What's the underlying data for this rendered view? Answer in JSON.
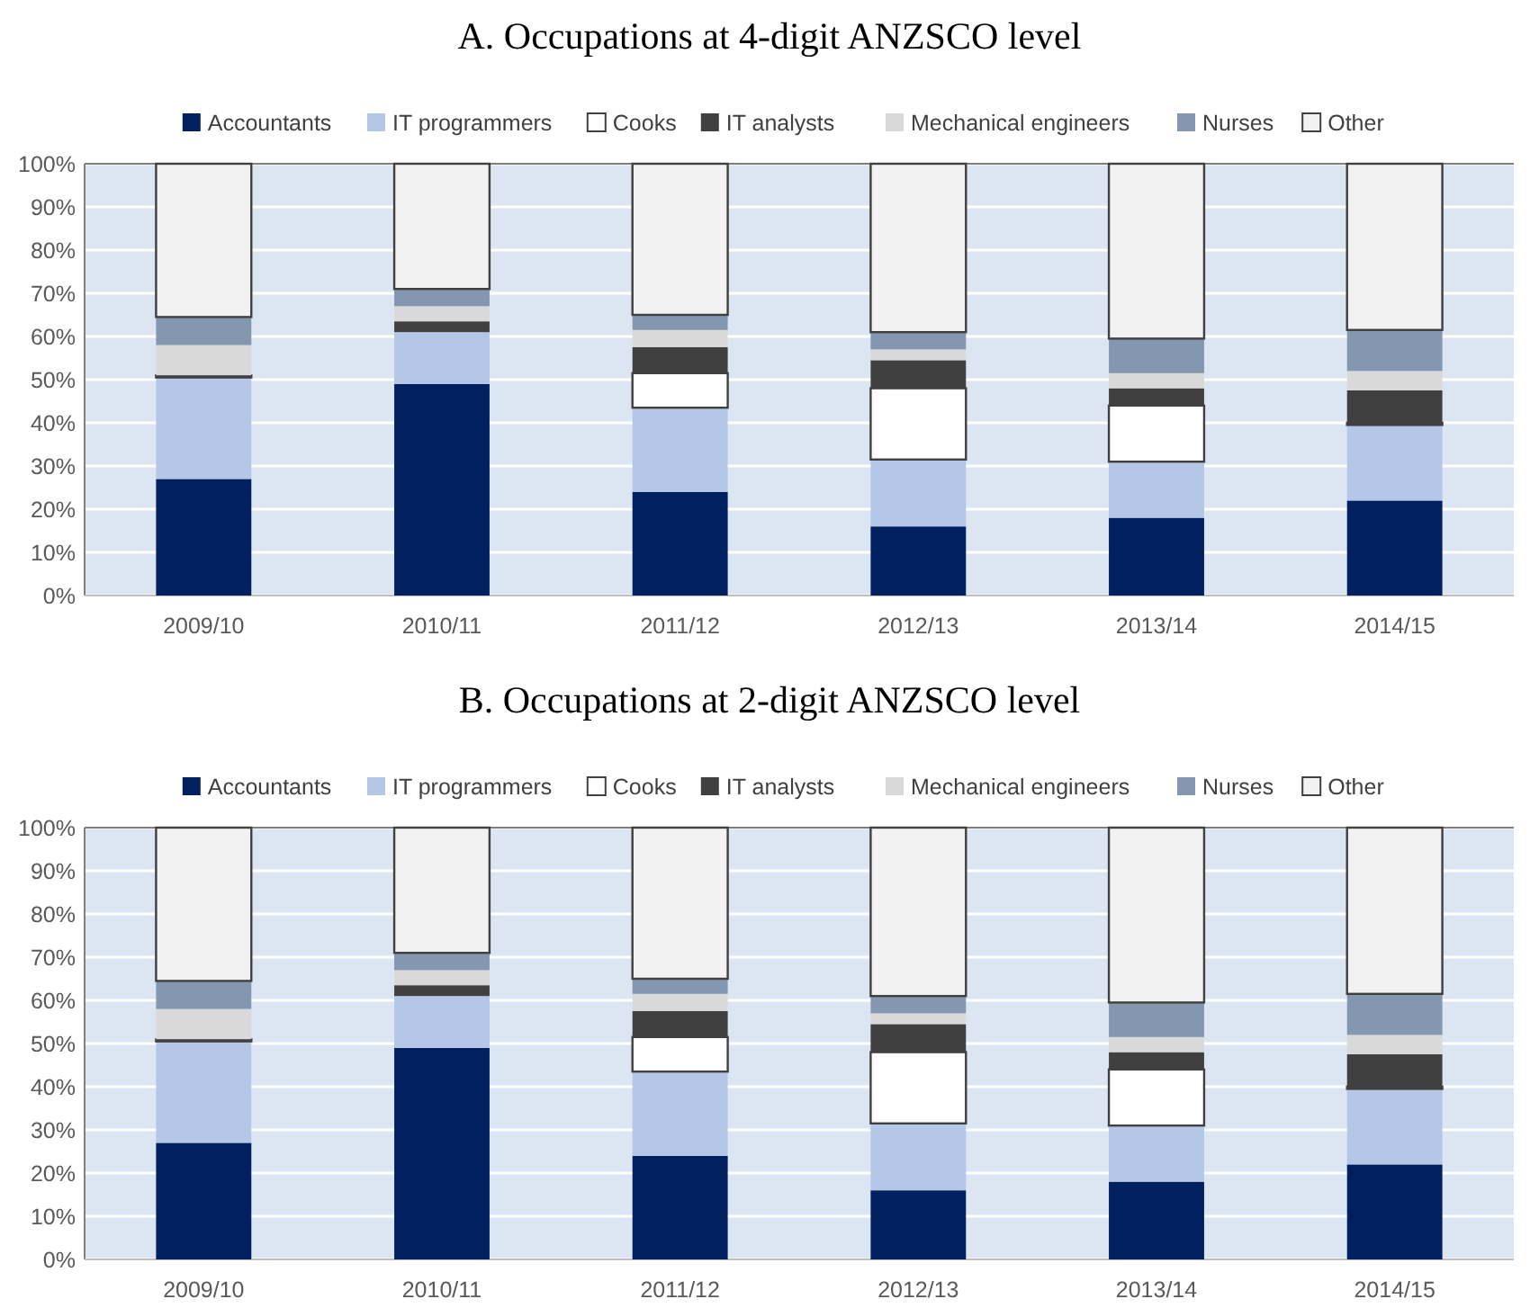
{
  "chart_data": [
    {
      "type": "bar",
      "title": "A. Occupations at 4-digit ANZSCO level",
      "stacked": true,
      "categories": [
        "2009/10",
        "2010/11",
        "2011/12",
        "2012/13",
        "2013/14",
        "2014/15"
      ],
      "ylim": [
        0,
        100
      ],
      "yticks": [
        {
          "value": 0,
          "label": "0%"
        },
        {
          "value": 10,
          "label": "10%"
        },
        {
          "value": 20,
          "label": "20%"
        },
        {
          "value": 30,
          "label": "30%"
        },
        {
          "value": 40,
          "label": "40%"
        },
        {
          "value": 50,
          "label": "50%"
        },
        {
          "value": 60,
          "label": "60%"
        },
        {
          "value": 70,
          "label": "70%"
        },
        {
          "value": 80,
          "label": "80%"
        },
        {
          "value": 90,
          "label": "90%"
        },
        {
          "value": 100,
          "label": "100%"
        }
      ],
      "grid": "y",
      "legend": "top",
      "series": [
        {
          "name": "Accountants",
          "color": "#002060",
          "values": [
            27,
            49,
            24,
            16,
            18,
            22
          ]
        },
        {
          "name": "IT programmers",
          "color": "#b4c7e7",
          "values": [
            23.5,
            12,
            19.5,
            15.5,
            13,
            17.5
          ]
        },
        {
          "name": "Cooks",
          "color": "#ffffff",
          "values": [
            0.5,
            0,
            8,
            16.5,
            13,
            0.5
          ]
        },
        {
          "name": "IT analysts",
          "color": "#404040",
          "values": [
            0,
            2.5,
            6,
            6.5,
            4,
            7.5
          ]
        },
        {
          "name": "Mechanical engineers",
          "color": "#d9d9d9",
          "values": [
            7,
            3.5,
            4,
            2.5,
            3.5,
            4.5
          ]
        },
        {
          "name": "Nurses",
          "color": "#8497b0",
          "values": [
            6.5,
            4,
            3.5,
            4,
            8,
            9.5
          ]
        },
        {
          "name": "Other",
          "color": "#f2f2f2",
          "values": [
            35.5,
            29,
            35,
            39,
            40.5,
            38.5
          ]
        }
      ]
    },
    {
      "type": "bar",
      "title": "B. Occupations at 2-digit ANZSCO level",
      "stacked": true,
      "categories": [
        "2009/10",
        "2010/11",
        "2011/12",
        "2012/13",
        "2013/14",
        "2014/15"
      ],
      "ylim": [
        0,
        100
      ],
      "yticks": [
        {
          "value": 0,
          "label": "0%"
        },
        {
          "value": 10,
          "label": "10%"
        },
        {
          "value": 20,
          "label": "20%"
        },
        {
          "value": 30,
          "label": "30%"
        },
        {
          "value": 40,
          "label": "40%"
        },
        {
          "value": 50,
          "label": "50%"
        },
        {
          "value": 60,
          "label": "60%"
        },
        {
          "value": 70,
          "label": "70%"
        },
        {
          "value": 80,
          "label": "80%"
        },
        {
          "value": 90,
          "label": "90%"
        },
        {
          "value": 100,
          "label": "100%"
        }
      ],
      "grid": "y",
      "legend": "top",
      "series": [
        {
          "name": "Accountants",
          "color": "#002060",
          "values": [
            27,
            49,
            24,
            16,
            18,
            22
          ]
        },
        {
          "name": "IT programmers",
          "color": "#b4c7e7",
          "values": [
            23.5,
            12,
            19.5,
            15.5,
            13,
            17.5
          ]
        },
        {
          "name": "Cooks",
          "color": "#ffffff",
          "values": [
            0.5,
            0,
            8,
            16.5,
            13,
            0.5
          ]
        },
        {
          "name": "IT analysts",
          "color": "#404040",
          "values": [
            0,
            2.5,
            6,
            6.5,
            4,
            7.5
          ]
        },
        {
          "name": "Mechanical engineers",
          "color": "#d9d9d9",
          "values": [
            7,
            3.5,
            4,
            2.5,
            3.5,
            4.5
          ]
        },
        {
          "name": "Nurses",
          "color": "#8497b0",
          "values": [
            6.5,
            4,
            3.5,
            4,
            8,
            9.5
          ]
        },
        {
          "name": "Other",
          "color": "#f2f2f2",
          "values": [
            35.5,
            29,
            35,
            39,
            40.5,
            38.5
          ]
        }
      ]
    }
  ]
}
